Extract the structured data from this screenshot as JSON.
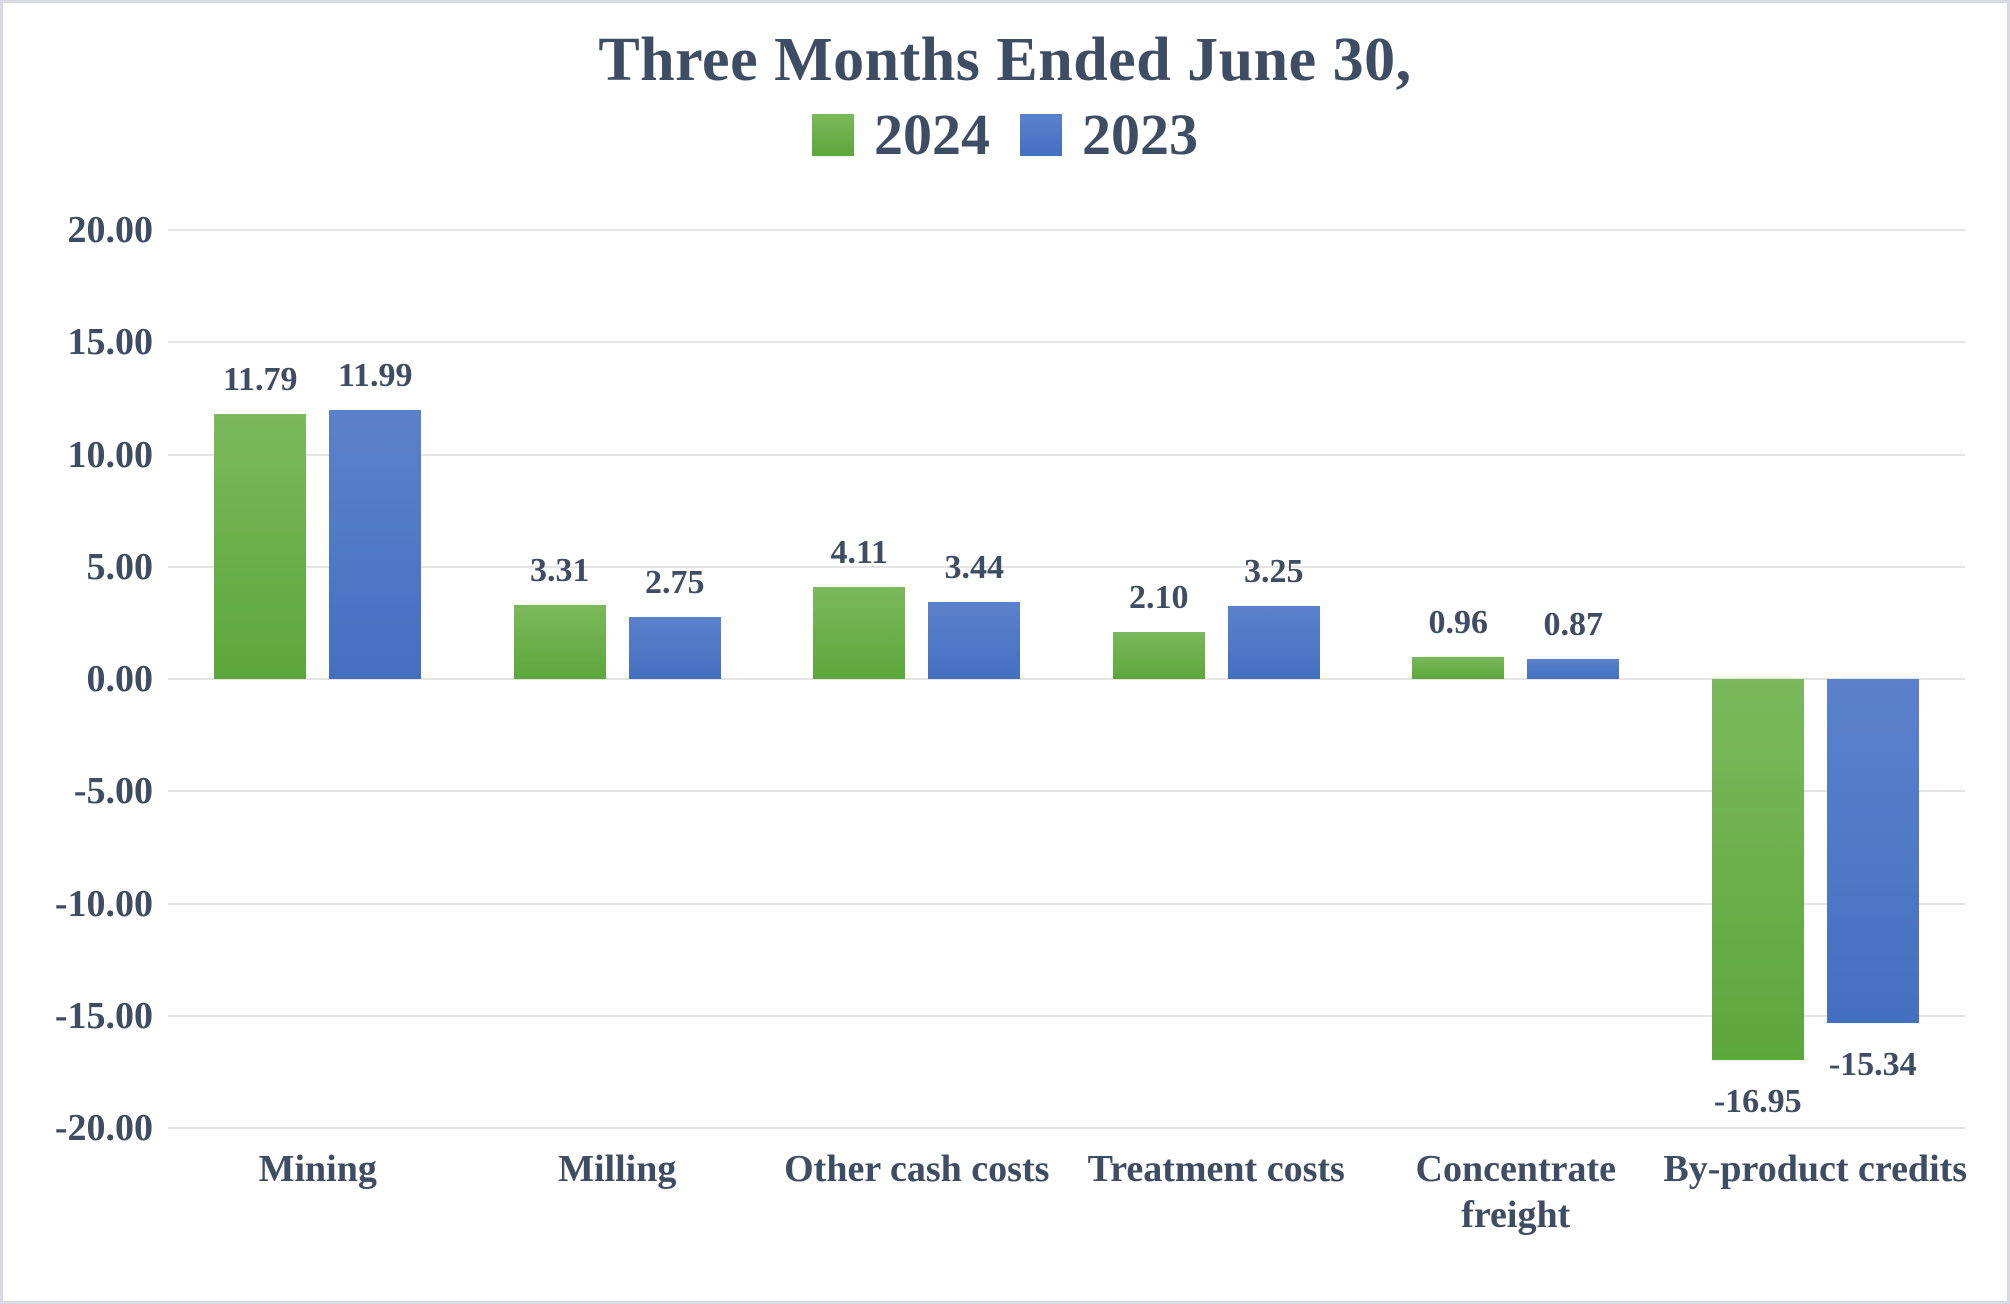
{
  "title": {
    "text": "Three Months Ended June 30,",
    "color": "#3e4d63"
  },
  "legend": {
    "items": [
      {
        "label": "2024",
        "color": "#6FB04C",
        "gradient_top": "#7BB95C",
        "gradient_bottom": "#5CA73B"
      },
      {
        "label": "2023",
        "color": "#4C76C5",
        "gradient_top": "#5B81CC",
        "gradient_bottom": "#4470C0"
      }
    ]
  },
  "chart_data": {
    "type": "bar",
    "title": "Three Months Ended June 30,",
    "categories": [
      "Mining",
      "Milling",
      "Other cash costs",
      "Treatment costs",
      "Concentrate\nfreight",
      "By-product credits"
    ],
    "series": [
      {
        "name": "2024",
        "color": "#6FB04C",
        "values": [
          11.79,
          3.31,
          4.11,
          2.1,
          0.96,
          -16.95
        ]
      },
      {
        "name": "2023",
        "color": "#4C76C5",
        "values": [
          11.99,
          2.75,
          3.44,
          3.25,
          0.87,
          -15.34
        ]
      }
    ],
    "data_labels": [
      [
        "11.79",
        "3.31",
        "4.11",
        "2.10",
        "0.96",
        "-16.95"
      ],
      [
        "11.99",
        "2.75",
        "3.44",
        "3.25",
        "0.87",
        "-15.34"
      ]
    ],
    "xlabel": "",
    "ylabel": "",
    "ylim": [
      -20,
      20
    ],
    "y_tick_step": 5,
    "y_tick_labels": [
      "20.00",
      "15.00",
      "10.00",
      "5.00",
      "0.00",
      "-5.00",
      "-10.00",
      "-15.00",
      "-20.00"
    ],
    "grid": true,
    "gridline_color": "#e4e4e4",
    "legend_position": "top",
    "text_color": "#3e4d63"
  }
}
